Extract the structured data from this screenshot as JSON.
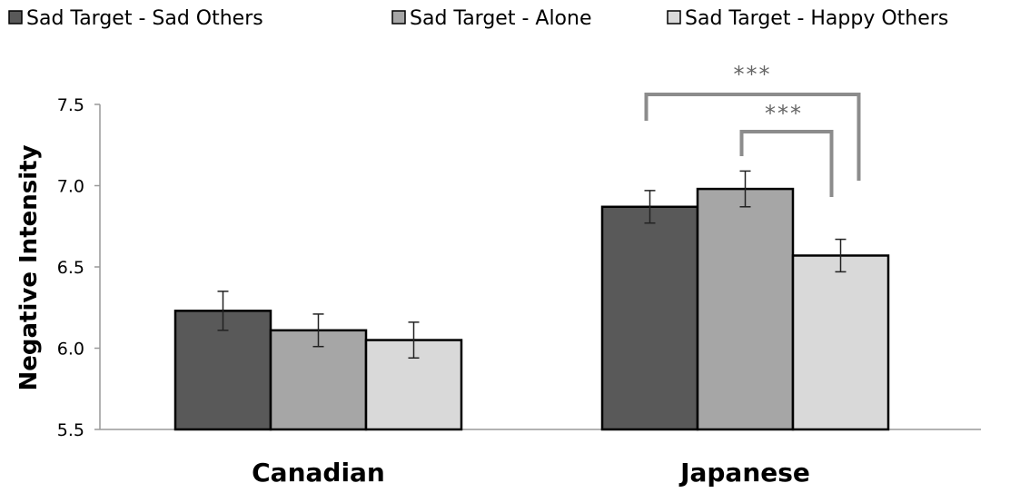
{
  "chart_data": {
    "type": "bar",
    "categories": [
      "Canadian",
      "Japanese"
    ],
    "series": [
      {
        "name": "Sad Target - Sad Others",
        "values": [
          6.23,
          6.87
        ],
        "errors": [
          0.12,
          0.1
        ],
        "color": "#595959"
      },
      {
        "name": "Sad Target - Alone",
        "values": [
          6.11,
          6.98
        ],
        "errors": [
          0.1,
          0.11
        ],
        "color": "#a6a6a6"
      },
      {
        "name": "Sad Target - Happy Others",
        "values": [
          6.05,
          6.57
        ],
        "errors": [
          0.11,
          0.1
        ],
        "color": "#d9d9d9"
      }
    ],
    "ylabel": "Negative Intensity",
    "xlabel": "",
    "ylim": [
      5.5,
      7.5
    ],
    "yticks": [
      "5.5",
      "6.0",
      "6.5",
      "7.0",
      "7.5"
    ],
    "legend_position": "top",
    "grid": false,
    "annotations": [
      {
        "text": "***",
        "category": "Japanese",
        "from_series": 0,
        "to_series": 2
      },
      {
        "text": "***",
        "category": "Japanese",
        "from_series": 1,
        "to_series": 2
      }
    ]
  }
}
